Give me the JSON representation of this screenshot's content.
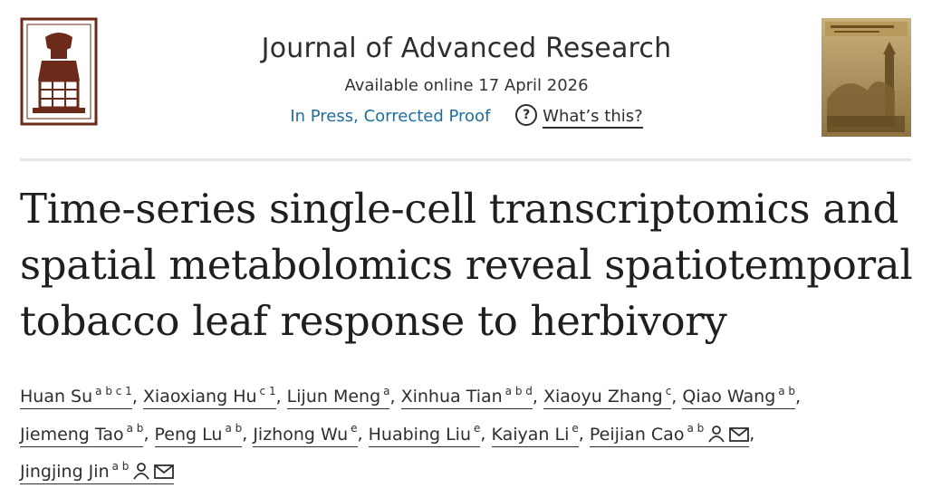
{
  "journal": {
    "name": "Journal of Advanced Research",
    "available": "Available online 17 April 2026",
    "status": "In Press, Corrected Proof",
    "whats_this": "What’s this?"
  },
  "article": {
    "title_lines": [
      "Time-series single-cell transcriptomics and",
      "spatial metabolomics reveal spatiotemporal",
      "tobacco leaf response to herbivory"
    ]
  },
  "authors": [
    {
      "name": "Huan Su",
      "sup": "a b c 1"
    },
    {
      "name": "Xiaoxiang Hu",
      "sup": "c 1"
    },
    {
      "name": "Lijun Meng",
      "sup": "a"
    },
    {
      "name": "Xinhua Tian",
      "sup": "a b d"
    },
    {
      "name": "Xiaoyu Zhang",
      "sup": "c"
    },
    {
      "name": "Qiao Wang",
      "sup": "a b"
    },
    {
      "name": "Jiemeng Tao",
      "sup": "a b"
    },
    {
      "name": "Peng Lu",
      "sup": "a b"
    },
    {
      "name": "Jizhong Wu",
      "sup": "e"
    },
    {
      "name": "Huabing Liu",
      "sup": "e"
    },
    {
      "name": "Kaiyan Li",
      "sup": "e"
    },
    {
      "name": "Peijian Cao",
      "sup": "a b",
      "icons": [
        "person-icon",
        "envelope-icon"
      ]
    },
    {
      "name": "Jingjing Jin",
      "sup": "a b",
      "icons": [
        "person-icon",
        "envelope-icon"
      ]
    }
  ],
  "separator": ",",
  "colors": {
    "link_blue": "#1f6e9c",
    "logo_brown": "#6b2a1a"
  }
}
